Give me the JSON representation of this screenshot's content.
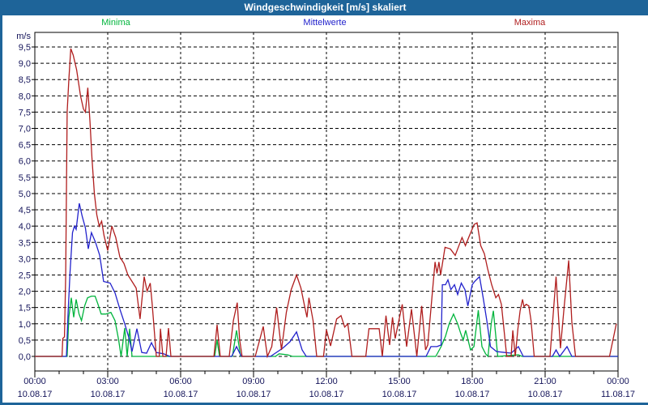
{
  "window_title": "Windgeschwindigkeit [m/s] skaliert",
  "colors": {
    "titlebar_bg": "#1e6499",
    "frame": "#1e6499",
    "plot_border": "#000000",
    "grid": "#000000",
    "axis_text": "#14145a",
    "minima": "#00b43c",
    "mittelwerte": "#2222cc",
    "maxima": "#b01e1e"
  },
  "legend": {
    "minima": "Minima",
    "mittelwerte": "Mittelwerte",
    "maxima": "Maxima"
  },
  "chart_data": {
    "type": "line",
    "title": "Windgeschwindigkeit [m/s] skaliert",
    "y_axis": {
      "unit": "m/s",
      "min": 0.0,
      "max": 9.5,
      "step": 0.5,
      "tick_labels": [
        "0,0",
        "0,5",
        "1,0",
        "1,5",
        "2,0",
        "2,5",
        "3,0",
        "3,5",
        "4,0",
        "4,5",
        "5,0",
        "5,5",
        "6,0",
        "6,5",
        "7,0",
        "7,5",
        "8,0",
        "8,5",
        "9,0",
        "9,5"
      ]
    },
    "x_axis": {
      "hours_span": 24,
      "minor_tick_hours": 1,
      "ticks": [
        {
          "hour": 0,
          "time": "00:00",
          "date": "10.08.17"
        },
        {
          "hour": 3,
          "time": "03:00",
          "date": "10.08.17"
        },
        {
          "hour": 6,
          "time": "06:00",
          "date": "10.08.17"
        },
        {
          "hour": 9,
          "time": "09:00",
          "date": "10.08.17"
        },
        {
          "hour": 12,
          "time": "12:00",
          "date": "10.08.17"
        },
        {
          "hour": 15,
          "time": "15:00",
          "date": "10.08.17"
        },
        {
          "hour": 18,
          "time": "18:00",
          "date": "10.08.17"
        },
        {
          "hour": 21,
          "time": "21:00",
          "date": "10.08.17"
        },
        {
          "hour": 24,
          "time": "00:00",
          "date": "11.08.17"
        }
      ]
    },
    "grid": "dashed",
    "legend_position": "top",
    "series": [
      {
        "name": "Minima",
        "color_key": "minima",
        "points": [
          [
            0,
            0
          ],
          [
            1.33,
            0
          ],
          [
            1.4,
            1.2
          ],
          [
            1.5,
            1.8
          ],
          [
            1.6,
            1.2
          ],
          [
            1.7,
            1.75
          ],
          [
            1.82,
            1.3
          ],
          [
            1.92,
            1.1
          ],
          [
            2.05,
            1.55
          ],
          [
            2.17,
            1.8
          ],
          [
            2.33,
            1.85
          ],
          [
            2.48,
            1.85
          ],
          [
            2.6,
            1.6
          ],
          [
            2.73,
            1.3
          ],
          [
            2.92,
            1.3
          ],
          [
            3.13,
            1.35
          ],
          [
            3.3,
            1.1
          ],
          [
            3.45,
            0.5
          ],
          [
            3.55,
            0
          ],
          [
            3.7,
            0.87
          ],
          [
            3.8,
            0
          ],
          [
            3.9,
            0.85
          ],
          [
            4.0,
            0
          ],
          [
            7.4,
            0
          ],
          [
            7.5,
            0.5
          ],
          [
            7.6,
            0
          ],
          [
            8.13,
            0
          ],
          [
            8.3,
            0.8
          ],
          [
            8.47,
            0
          ],
          [
            9.9,
            0
          ],
          [
            10.05,
            0.08
          ],
          [
            10.4,
            0.05
          ],
          [
            10.6,
            0
          ],
          [
            16.5,
            0
          ],
          [
            16.72,
            0.3
          ],
          [
            16.9,
            0.62
          ],
          [
            17.05,
            1.0
          ],
          [
            17.23,
            1.3
          ],
          [
            17.4,
            1.0
          ],
          [
            17.53,
            0.7
          ],
          [
            17.63,
            0.5
          ],
          [
            17.73,
            0.8
          ],
          [
            17.93,
            0.2
          ],
          [
            18.07,
            0.3
          ],
          [
            18.25,
            1.42
          ],
          [
            18.4,
            0.3
          ],
          [
            18.55,
            0.08
          ],
          [
            18.65,
            0
          ],
          [
            18.78,
            1.0
          ],
          [
            18.87,
            1.4
          ],
          [
            19.05,
            0
          ],
          [
            19.9,
            0.05
          ],
          [
            20.05,
            0
          ],
          [
            24,
            0
          ]
        ]
      },
      {
        "name": "Mittelwerte",
        "color_key": "mittelwerte",
        "points": [
          [
            0,
            0
          ],
          [
            1.3,
            0
          ],
          [
            1.37,
            1.35
          ],
          [
            1.45,
            2.6
          ],
          [
            1.55,
            3.8
          ],
          [
            1.63,
            4.0
          ],
          [
            1.7,
            3.9
          ],
          [
            1.83,
            4.7
          ],
          [
            1.95,
            4.3
          ],
          [
            2.08,
            3.95
          ],
          [
            2.2,
            3.3
          ],
          [
            2.33,
            3.8
          ],
          [
            2.5,
            3.5
          ],
          [
            2.67,
            3.1
          ],
          [
            2.83,
            2.3
          ],
          [
            3.1,
            2.25
          ],
          [
            3.3,
            1.95
          ],
          [
            3.5,
            1.45
          ],
          [
            3.7,
            1.0
          ],
          [
            3.88,
            0.55
          ],
          [
            4.0,
            0.15
          ],
          [
            4.2,
            0.85
          ],
          [
            4.4,
            0.12
          ],
          [
            4.6,
            0.1
          ],
          [
            4.8,
            0.42
          ],
          [
            5.0,
            0.12
          ],
          [
            5.3,
            0.08
          ],
          [
            5.55,
            0
          ],
          [
            8.1,
            0
          ],
          [
            8.3,
            0.3
          ],
          [
            8.5,
            0
          ],
          [
            9.7,
            0
          ],
          [
            10.2,
            0.25
          ],
          [
            10.5,
            0.45
          ],
          [
            10.77,
            0.75
          ],
          [
            11.0,
            0.2
          ],
          [
            11.17,
            0
          ],
          [
            16.1,
            0
          ],
          [
            16.3,
            0.3
          ],
          [
            16.55,
            0.3
          ],
          [
            16.72,
            0.35
          ],
          [
            16.77,
            2.2
          ],
          [
            16.9,
            2.2
          ],
          [
            17.0,
            2.35
          ],
          [
            17.12,
            2.05
          ],
          [
            17.27,
            2.2
          ],
          [
            17.4,
            1.9
          ],
          [
            17.55,
            2.25
          ],
          [
            17.7,
            2.05
          ],
          [
            17.82,
            1.55
          ],
          [
            18.0,
            2.2
          ],
          [
            18.1,
            2.3
          ],
          [
            18.3,
            2.45
          ],
          [
            18.45,
            1.8
          ],
          [
            18.6,
            1.1
          ],
          [
            18.75,
            0.3
          ],
          [
            19.0,
            0.15
          ],
          [
            19.35,
            0.12
          ],
          [
            19.6,
            0.1
          ],
          [
            19.9,
            0.3
          ],
          [
            20.1,
            0
          ],
          [
            21.3,
            0
          ],
          [
            21.45,
            0.2
          ],
          [
            21.6,
            0
          ],
          [
            21.9,
            0.3
          ],
          [
            22.1,
            0
          ],
          [
            24,
            0
          ]
        ]
      },
      {
        "name": "Maxima",
        "color_key": "maxima",
        "points": [
          [
            0,
            0
          ],
          [
            1.12,
            0
          ],
          [
            1.15,
            0.55
          ],
          [
            1.22,
            0.6
          ],
          [
            1.27,
            2.5
          ],
          [
            1.33,
            7.5
          ],
          [
            1.4,
            8.5
          ],
          [
            1.48,
            9.45
          ],
          [
            1.58,
            9.25
          ],
          [
            1.72,
            8.8
          ],
          [
            1.88,
            8.0
          ],
          [
            2.0,
            7.6
          ],
          [
            2.08,
            7.5
          ],
          [
            2.18,
            8.25
          ],
          [
            2.27,
            7.2
          ],
          [
            2.35,
            6.1
          ],
          [
            2.45,
            5.0
          ],
          [
            2.55,
            4.35
          ],
          [
            2.65,
            4.0
          ],
          [
            2.75,
            4.15
          ],
          [
            2.85,
            3.7
          ],
          [
            3.0,
            3.25
          ],
          [
            3.17,
            4.0
          ],
          [
            3.33,
            3.65
          ],
          [
            3.5,
            3.05
          ],
          [
            3.67,
            2.85
          ],
          [
            3.83,
            2.5
          ],
          [
            4.0,
            2.3
          ],
          [
            4.17,
            2.1
          ],
          [
            4.33,
            1.15
          ],
          [
            4.5,
            2.45
          ],
          [
            4.62,
            2.0
          ],
          [
            4.75,
            2.25
          ],
          [
            4.83,
            1.6
          ],
          [
            5.0,
            0
          ],
          [
            5.12,
            0
          ],
          [
            5.17,
            0.85
          ],
          [
            5.27,
            0
          ],
          [
            5.4,
            0
          ],
          [
            5.5,
            0.87
          ],
          [
            5.6,
            0
          ],
          [
            7.37,
            0
          ],
          [
            7.5,
            0.97
          ],
          [
            7.63,
            0
          ],
          [
            8.0,
            0
          ],
          [
            8.17,
            1.1
          ],
          [
            8.33,
            1.65
          ],
          [
            8.43,
            0.5
          ],
          [
            8.53,
            0
          ],
          [
            9.07,
            0
          ],
          [
            9.25,
            0.5
          ],
          [
            9.4,
            0.92
          ],
          [
            9.57,
            0
          ],
          [
            9.75,
            0.3
          ],
          [
            9.95,
            1.5
          ],
          [
            10.15,
            0.2
          ],
          [
            10.35,
            1.35
          ],
          [
            10.55,
            2.05
          ],
          [
            10.77,
            2.5
          ],
          [
            10.95,
            2.1
          ],
          [
            11.1,
            1.55
          ],
          [
            11.2,
            1.2
          ],
          [
            11.28,
            1.8
          ],
          [
            11.45,
            1.1
          ],
          [
            11.6,
            0
          ],
          [
            11.88,
            0
          ],
          [
            12.0,
            0.82
          ],
          [
            12.17,
            0.32
          ],
          [
            12.42,
            1.15
          ],
          [
            12.6,
            1.25
          ],
          [
            12.75,
            0.9
          ],
          [
            12.88,
            1.0
          ],
          [
            13.05,
            0
          ],
          [
            13.62,
            0
          ],
          [
            13.75,
            0.85
          ],
          [
            14.17,
            0.85
          ],
          [
            14.3,
            0
          ],
          [
            14.45,
            1.25
          ],
          [
            14.6,
            0.35
          ],
          [
            14.72,
            1.2
          ],
          [
            14.83,
            0.55
          ],
          [
            14.93,
            0.92
          ],
          [
            15.12,
            1.6
          ],
          [
            15.3,
            0.3
          ],
          [
            15.5,
            1.45
          ],
          [
            15.72,
            0
          ],
          [
            15.92,
            1.55
          ],
          [
            16.08,
            0.2
          ],
          [
            16.17,
            0.35
          ],
          [
            16.47,
            2.9
          ],
          [
            16.55,
            2.55
          ],
          [
            16.63,
            2.9
          ],
          [
            16.7,
            2.5
          ],
          [
            16.88,
            3.35
          ],
          [
            17.1,
            3.3
          ],
          [
            17.3,
            3.1
          ],
          [
            17.58,
            3.65
          ],
          [
            17.72,
            3.4
          ],
          [
            17.88,
            3.7
          ],
          [
            18.08,
            4.05
          ],
          [
            18.2,
            4.1
          ],
          [
            18.35,
            3.4
          ],
          [
            18.5,
            3.15
          ],
          [
            18.63,
            2.7
          ],
          [
            18.8,
            2.2
          ],
          [
            18.97,
            1.8
          ],
          [
            19.08,
            1.9
          ],
          [
            19.2,
            1.6
          ],
          [
            19.42,
            0
          ],
          [
            19.6,
            0
          ],
          [
            19.67,
            0.8
          ],
          [
            19.77,
            0
          ],
          [
            19.88,
            0.85
          ],
          [
            19.97,
            1.4
          ],
          [
            20.07,
            1.75
          ],
          [
            20.13,
            1.53
          ],
          [
            20.22,
            1.6
          ],
          [
            20.33,
            1.55
          ],
          [
            20.42,
            1.1
          ],
          [
            20.55,
            0
          ],
          [
            21.2,
            0
          ],
          [
            21.45,
            2.45
          ],
          [
            21.63,
            0.25
          ],
          [
            21.78,
            1.5
          ],
          [
            21.97,
            2.95
          ],
          [
            22.1,
            1.05
          ],
          [
            22.25,
            0
          ],
          [
            23.65,
            0
          ],
          [
            23.93,
            1.0
          ]
        ]
      }
    ]
  }
}
